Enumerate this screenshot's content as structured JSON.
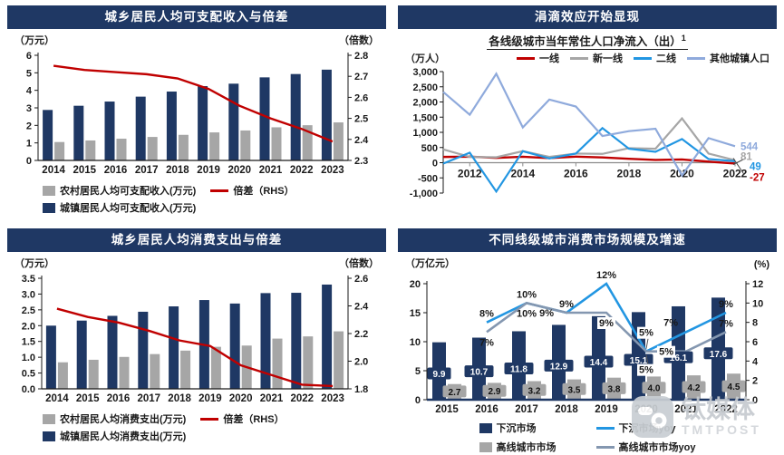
{
  "colors": {
    "navy": "#1F3864",
    "gray": "#A6A6A6",
    "red": "#C00000",
    "blue": "#2296E2",
    "lightblue": "#8FAADC",
    "steel": "#8497B0"
  },
  "watermark": {
    "brand": "钛媒体",
    "subbrand": "TMTPOST"
  },
  "panels": [
    {
      "id": "income",
      "title": "城乡居民人均可支配收入与倍差",
      "unit_left": "（万元）",
      "unit_right": "（倍数）",
      "legend": [
        {
          "swatch": "box",
          "color": "gray",
          "label": "农村居民人均可支配收入(万元)"
        },
        {
          "swatch": "line",
          "color": "red",
          "label": "倍差（RHS）"
        },
        {
          "swatch": "box",
          "color": "navy",
          "label": "城镇居民人均可支配收入(万元)"
        }
      ]
    },
    {
      "id": "population",
      "title": "涓滴效应开始显现",
      "subtitle": "各线级城市当年常住人口净流入（出）",
      "subtitle_sup": "1",
      "unit_left": "（万人）",
      "legend": [
        {
          "swatch": "line",
          "color": "red",
          "label": "一线"
        },
        {
          "swatch": "line",
          "color": "gray",
          "label": "新一线"
        },
        {
          "swatch": "line",
          "color": "blue",
          "label": "二线"
        },
        {
          "swatch": "line",
          "color": "lightblue",
          "label": "其他城镇人口"
        }
      ]
    },
    {
      "id": "consumption",
      "title": "城乡居民人均消费支出与倍差",
      "unit_left": "（万元）",
      "unit_right": "（倍数）",
      "legend": [
        {
          "swatch": "box",
          "color": "gray",
          "label": "农村居民人均消费支出(万元)"
        },
        {
          "swatch": "line",
          "color": "red",
          "label": "倍差（RHS）"
        },
        {
          "swatch": "box",
          "color": "navy",
          "label": "城镇居民人均消费支出(万元)"
        }
      ]
    },
    {
      "id": "market",
      "title": "不同线级城市消费市场规模及增速",
      "unit_left": "（万亿元）",
      "unit_right": "(%)",
      "legend": [
        {
          "swatch": "box",
          "color": "navy",
          "label": "下沉市场"
        },
        {
          "swatch": "line",
          "color": "blue",
          "label": "下沉市场yoy"
        },
        {
          "swatch": "box",
          "color": "gray",
          "label": "高线城市市场"
        },
        {
          "swatch": "line",
          "color": "steel",
          "label": "高线城市市场yoy"
        }
      ]
    }
  ],
  "chart_data": [
    {
      "type": "bar",
      "title": "城乡居民人均可支配收入与倍差",
      "categories": [
        "2014",
        "2015",
        "2016",
        "2017",
        "2018",
        "2019",
        "2020",
        "2021",
        "2022",
        "2023"
      ],
      "series": [
        {
          "name": "城镇居民人均可支配收入(万元)",
          "kind": "bar",
          "color": "navy",
          "values": [
            2.88,
            3.12,
            3.36,
            3.64,
            3.93,
            4.24,
            4.38,
            4.74,
            4.93,
            5.18
          ]
        },
        {
          "name": "农村居民人均可支配收入(万元)",
          "kind": "bar",
          "color": "gray",
          "values": [
            1.05,
            1.14,
            1.24,
            1.34,
            1.46,
            1.6,
            1.71,
            1.89,
            2.01,
            2.17
          ]
        },
        {
          "name": "倍差（RHS）",
          "kind": "line",
          "axis": "right",
          "color": "red",
          "values": [
            2.75,
            2.73,
            2.72,
            2.71,
            2.69,
            2.64,
            2.56,
            2.5,
            2.45,
            2.39
          ]
        }
      ],
      "ylabel_left": "（万元）",
      "ylabel_right": "（倍数）",
      "ylim_left": [
        0,
        6
      ],
      "yticks_left": [
        [
          0,
          "0"
        ],
        [
          1,
          "1"
        ],
        [
          2,
          "2"
        ],
        [
          3,
          "3"
        ],
        [
          4,
          "4"
        ],
        [
          5,
          "5"
        ],
        [
          6,
          "6"
        ]
      ],
      "ylim_right": [
        2.3,
        2.8
      ],
      "yticks_right": [
        [
          2.3,
          "2.3"
        ],
        [
          2.4,
          "2.4"
        ],
        [
          2.5,
          "2.5"
        ],
        [
          2.6,
          "2.6"
        ],
        [
          2.7,
          "2.7"
        ],
        [
          2.8,
          "2.8"
        ]
      ],
      "grid": false,
      "legend_position": "bottom"
    },
    {
      "type": "line",
      "title": "各线级城市当年常住人口净流入（出）1",
      "x": [
        2011,
        2012,
        2013,
        2014,
        2015,
        2016,
        2017,
        2018,
        2019,
        2020,
        2021,
        2022
      ],
      "xticks": [
        2012,
        2014,
        2016,
        2018,
        2020,
        2022
      ],
      "series": [
        {
          "name": "一线",
          "color": "red",
          "width": 2.4,
          "values": [
            190,
            200,
            160,
            195,
            150,
            200,
            175,
            130,
            90,
            105,
            35,
            -27
          ]
        },
        {
          "name": "新一线",
          "color": "gray",
          "width": 2.2,
          "values": [
            440,
            190,
            180,
            380,
            190,
            300,
            290,
            480,
            460,
            1460,
            300,
            81
          ]
        },
        {
          "name": "二线",
          "color": "blue",
          "width": 2.2,
          "values": [
            -30,
            330,
            -950,
            380,
            140,
            300,
            1140,
            460,
            360,
            780,
            120,
            49
          ]
        },
        {
          "name": "其他城镇人口",
          "color": "lightblue",
          "width": 2.2,
          "values": [
            2330,
            1580,
            2930,
            1160,
            2080,
            1850,
            880,
            1040,
            1120,
            -420,
            810,
            544
          ]
        }
      ],
      "ylabel": "（万人）",
      "ylim": [
        -1000,
        3000
      ],
      "yticks": [
        [
          -1000,
          "-1,000"
        ],
        [
          -500,
          "-500"
        ],
        [
          0,
          "0"
        ],
        [
          500,
          "500"
        ],
        [
          1000,
          "1,000"
        ],
        [
          1500,
          "1,500"
        ],
        [
          2000,
          "2,000"
        ],
        [
          2500,
          "2,500"
        ],
        [
          3000,
          "3,000"
        ]
      ],
      "end_labels": [
        {
          "series": 3,
          "text": "544"
        },
        {
          "series": 1,
          "text": "81"
        },
        {
          "series": 2,
          "text": "49"
        },
        {
          "series": 0,
          "text": "-27"
        }
      ],
      "grid": false,
      "legend_position": "top"
    },
    {
      "type": "bar",
      "title": "城乡居民人均消费支出与倍差",
      "categories": [
        "2014",
        "2015",
        "2016",
        "2017",
        "2018",
        "2019",
        "2020",
        "2021",
        "2022",
        "2023"
      ],
      "series": [
        {
          "name": "城镇居民人均消费支出(万元)",
          "kind": "bar",
          "color": "navy",
          "values": [
            2.0,
            2.16,
            2.31,
            2.44,
            2.61,
            2.81,
            2.7,
            3.03,
            3.04,
            3.3
          ]
        },
        {
          "name": "农村居民人均消费支出(万元)",
          "kind": "bar",
          "color": "gray",
          "values": [
            0.84,
            0.92,
            1.01,
            1.1,
            1.21,
            1.33,
            1.37,
            1.59,
            1.66,
            1.82
          ]
        },
        {
          "name": "倍差（RHS）",
          "kind": "line",
          "axis": "right",
          "color": "red",
          "values": [
            2.38,
            2.32,
            2.28,
            2.22,
            2.15,
            2.11,
            1.97,
            1.9,
            1.83,
            1.82
          ]
        }
      ],
      "ylabel_left": "（万元）",
      "ylabel_right": "（倍数）",
      "ylim_left": [
        0,
        3.5
      ],
      "yticks_left": [
        [
          0,
          "0.0"
        ],
        [
          0.5,
          "0.5"
        ],
        [
          1,
          "1.0"
        ],
        [
          1.5,
          "1.5"
        ],
        [
          2,
          "2.0"
        ],
        [
          2.5,
          "2.5"
        ],
        [
          3,
          "3.0"
        ],
        [
          3.5,
          "3.5"
        ]
      ],
      "ylim_right": [
        1.8,
        2.6
      ],
      "yticks_right": [
        [
          1.8,
          "1.8"
        ],
        [
          2.0,
          "2.0"
        ],
        [
          2.2,
          "2.2"
        ],
        [
          2.4,
          "2.4"
        ],
        [
          2.6,
          "2.6"
        ]
      ],
      "grid": false,
      "legend_position": "bottom"
    },
    {
      "type": "bar",
      "title": "不同线级城市消费市场规模及增速",
      "categories": [
        "2015",
        "2016",
        "2017",
        "2018",
        "2019",
        "2020",
        "2021",
        "2022"
      ],
      "series": [
        {
          "name": "下沉市场",
          "kind": "bar",
          "color": "navy",
          "values": [
            9.9,
            10.7,
            11.8,
            12.9,
            14.4,
            15.1,
            16.1,
            17.6
          ],
          "labels": [
            "9.9",
            "10.7",
            "11.8",
            "12.9",
            "14.4",
            "15.1",
            "16.1",
            "17.6"
          ]
        },
        {
          "name": "高线城市市场",
          "kind": "bar",
          "color": "gray",
          "values": [
            2.7,
            2.9,
            3.2,
            3.5,
            3.8,
            4.0,
            4.2,
            4.5
          ],
          "labels": [
            "2.7",
            "2.9",
            "3.2",
            "3.5",
            "3.8",
            "4.0",
            "4.2",
            "4.5"
          ]
        },
        {
          "name": "下沉市场yoy",
          "kind": "line",
          "axis": "right",
          "color": "blue",
          "width": 2.6,
          "values": [
            null,
            8,
            10,
            9,
            12,
            5,
            7,
            9
          ]
        },
        {
          "name": "高线城市市场yoy",
          "kind": "line",
          "axis": "right",
          "color": "steel",
          "width": 2.6,
          "values": [
            null,
            7,
            10,
            9,
            9,
            5,
            5,
            7
          ]
        }
      ],
      "ylabel_left": "（万亿元）",
      "ylabel_right": "(%)",
      "ylim_left": [
        0,
        20
      ],
      "yticks_left": [
        [
          0,
          "0"
        ],
        [
          5,
          "5"
        ],
        [
          10,
          "10"
        ],
        [
          15,
          "15"
        ],
        [
          20,
          "20"
        ]
      ],
      "ylim_right": [
        0,
        12
      ],
      "yticks_right": [
        [
          0,
          "0"
        ],
        [
          2,
          "2"
        ],
        [
          4,
          "4"
        ],
        [
          6,
          "6"
        ],
        [
          8,
          "8"
        ],
        [
          10,
          "10"
        ],
        [
          12,
          "12"
        ]
      ],
      "point_labels": [
        {
          "series": 2,
          "i": 1,
          "text": "8%",
          "pos": "above"
        },
        {
          "series": 2,
          "i": 2,
          "text": "10%",
          "pos": "above"
        },
        {
          "series": 2,
          "i": 3,
          "text": "9%",
          "pos": "above"
        },
        {
          "series": 2,
          "i": 4,
          "text": "12%",
          "pos": "above"
        },
        {
          "series": 2,
          "i": 5,
          "text": "5%",
          "pos": "above2",
          "boxed": true,
          "leader": true
        },
        {
          "series": 2,
          "i": 6,
          "text": "7%",
          "pos": "above-left"
        },
        {
          "series": 2,
          "i": 7,
          "text": "9%",
          "pos": "above"
        },
        {
          "series": 3,
          "i": 1,
          "text": "7%",
          "pos": "below"
        },
        {
          "series": 3,
          "i": 2,
          "text": "10%",
          "pos": "below"
        },
        {
          "series": 3,
          "i": 3,
          "text": "9%",
          "pos": "left"
        },
        {
          "series": 3,
          "i": 4,
          "text": "9%",
          "pos": "below",
          "boxed": true
        },
        {
          "series": 3,
          "i": 5,
          "text": "5%",
          "pos": "below2",
          "boxed": true,
          "leader": true
        },
        {
          "series": 3,
          "i": 6,
          "text": "5%",
          "pos": "left",
          "boxed": true
        },
        {
          "series": 3,
          "i": 7,
          "text": "7%",
          "pos": "above"
        }
      ],
      "grid": false,
      "legend_position": "bottom"
    }
  ]
}
